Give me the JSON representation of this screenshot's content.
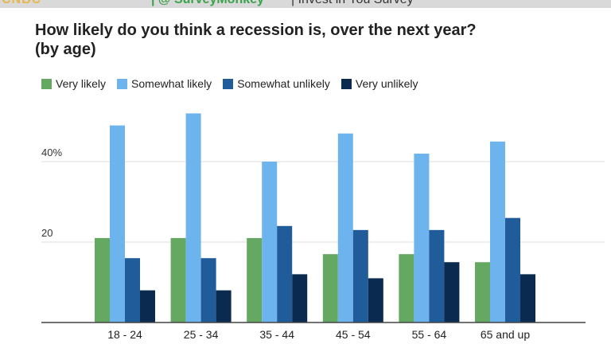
{
  "header": {
    "brand": "CNBC",
    "handle": "| @ SurveyMonkey",
    "tag": "| Invest in You Survey"
  },
  "chart_data": {
    "type": "bar",
    "title": "How likely do you think a recession is, over the next year?",
    "subtitle": "(by age)",
    "xlabel": "",
    "ylabel": "",
    "categories": [
      "18 - 24",
      "25 - 34",
      "35 - 44",
      "45 - 54",
      "55 - 64",
      "65 and up"
    ],
    "series": [
      {
        "name": "Very likely",
        "color": "#64a861",
        "values": [
          21,
          21,
          21,
          17,
          17,
          15
        ]
      },
      {
        "name": "Somewhat likely",
        "color": "#6db3ed",
        "values": [
          49,
          52,
          40,
          47,
          42,
          45
        ]
      },
      {
        "name": "Somewhat unlikely",
        "color": "#1f5c99",
        "values": [
          16,
          16,
          24,
          23,
          23,
          26
        ]
      },
      {
        "name": "Very unlikely",
        "color": "#0b2a4f",
        "values": [
          8,
          8,
          12,
          11,
          15,
          12
        ]
      }
    ],
    "yticks": [
      {
        "value": 20,
        "label": "20"
      },
      {
        "value": 40,
        "label": "40%"
      }
    ],
    "ylim": [
      0,
      52
    ],
    "grid": true,
    "legend_position": "top-left"
  }
}
